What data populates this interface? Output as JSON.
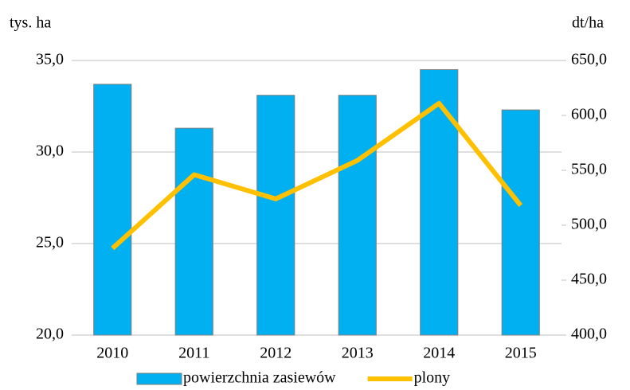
{
  "chart_data": {
    "type": "bar",
    "y_label": "tys. ha",
    "y2_label": "dt/ha",
    "categories": [
      "2010",
      "2011",
      "2012",
      "2013",
      "2014",
      "2015"
    ],
    "series": [
      {
        "name": "powierzchnia zasiewów",
        "type": "bar",
        "color": "#00b0f0",
        "values": [
          33.7,
          31.3,
          33.1,
          33.1,
          34.5,
          32.3
        ]
      },
      {
        "name": "plony",
        "type": "line",
        "axis": "y2",
        "color": "#ffc000",
        "values": [
          479,
          546,
          524,
          559,
          611,
          518
        ]
      }
    ],
    "ylim": [
      20,
      35
    ],
    "yticks": [
      {
        "value": 20,
        "label": "20,0"
      },
      {
        "value": 25,
        "label": "25,0"
      },
      {
        "value": 30,
        "label": "30,0"
      },
      {
        "value": 35,
        "label": "35,0"
      }
    ],
    "y2lim": [
      400,
      650
    ],
    "y2ticks": [
      {
        "value": 400,
        "label": "400,0"
      },
      {
        "value": 450,
        "label": "450,0"
      },
      {
        "value": 500,
        "label": "500,0"
      },
      {
        "value": 550,
        "label": "550,0"
      },
      {
        "value": 600,
        "label": "600,0"
      },
      {
        "value": 650,
        "label": "650,0"
      }
    ],
    "grid": true,
    "legend": "bottom"
  }
}
